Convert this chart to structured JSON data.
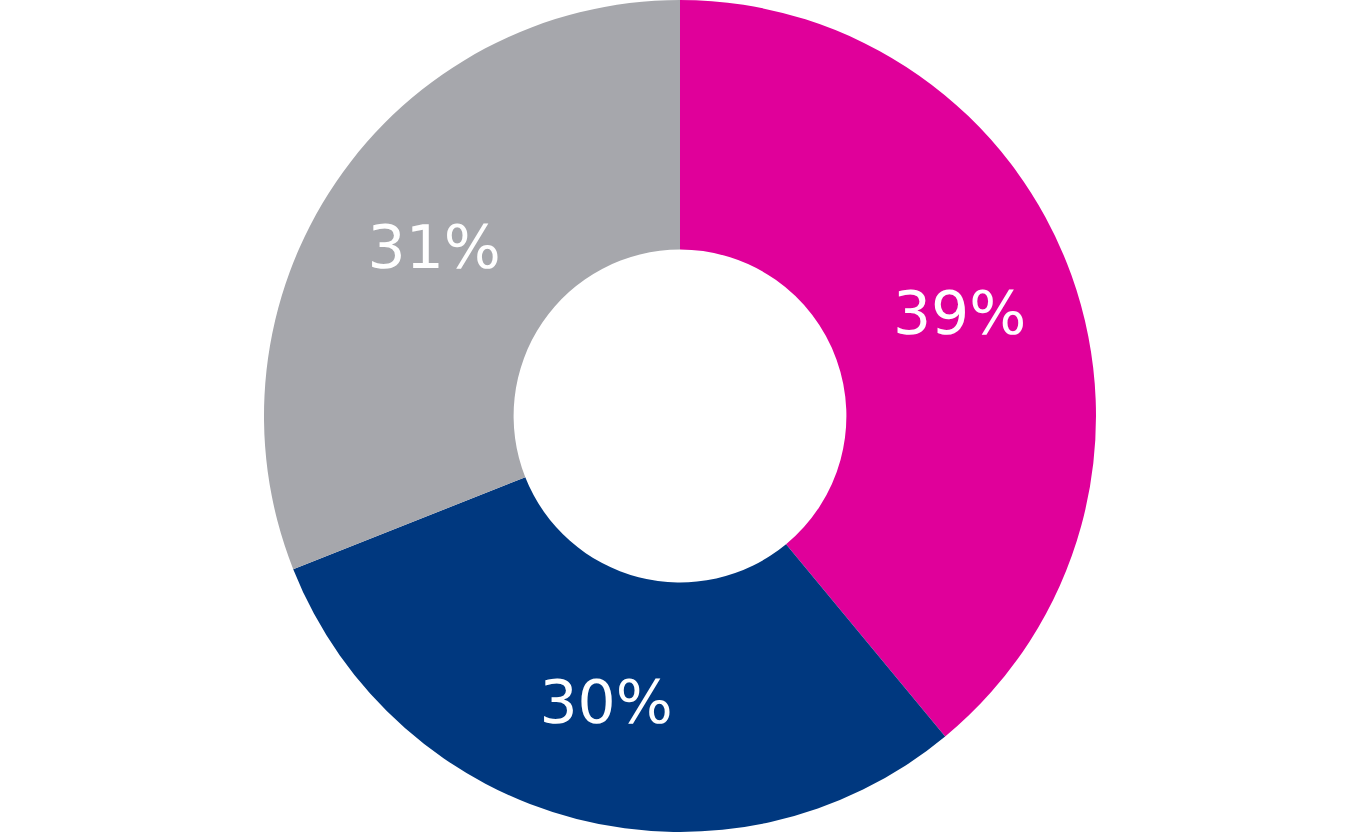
{
  "chart_data": {
    "type": "donut",
    "categories": [
      null,
      null,
      null
    ],
    "values": [
      39,
      30,
      31
    ],
    "colors": [
      "#e0009a",
      "#00387f",
      "#a6a7ac"
    ],
    "value_labels": [
      "39%",
      "30%",
      "31%"
    ]
  }
}
